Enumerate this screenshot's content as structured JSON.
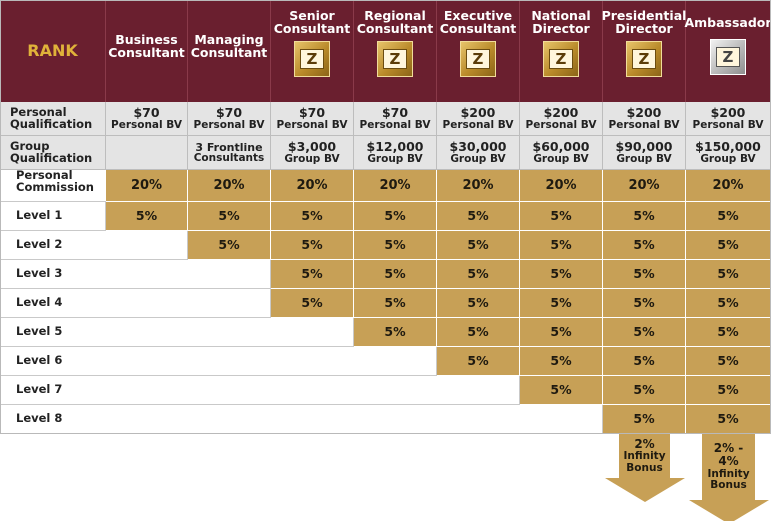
{
  "header": {
    "rank": "RANK",
    "columns": [
      {
        "line1": "Business",
        "line2": "Consultant",
        "badge": false
      },
      {
        "line1": "Managing",
        "line2": "Consultant",
        "badge": false
      },
      {
        "line1": "Senior",
        "line2": "Consultant",
        "badge": true,
        "badge_icon": "z-gold-badge-icon"
      },
      {
        "line1": "Regional",
        "line2": "Consultant",
        "badge": true,
        "badge_icon": "z-gold-badge-icon"
      },
      {
        "line1": "Executive",
        "line2": "Consultant",
        "badge": true,
        "badge_icon": "z-gold-badge-icon"
      },
      {
        "line1": "National",
        "line2": "Director",
        "badge": true,
        "badge_icon": "z-gold-badge-icon"
      },
      {
        "line1": "Presidential",
        "line2": "Director",
        "badge": true,
        "badge_icon": "z-gold-badge-icon"
      },
      {
        "line1": "Ambassador",
        "line2": "",
        "badge": true,
        "badge_icon": "z-silver-badge-icon"
      }
    ]
  },
  "personal_qualification": {
    "label1": "Personal",
    "label2": "Qualification",
    "values": [
      {
        "amount": "$70",
        "unit": "Personal BV"
      },
      {
        "amount": "$70",
        "unit": "Personal BV"
      },
      {
        "amount": "$70",
        "unit": "Personal BV"
      },
      {
        "amount": "$70",
        "unit": "Personal BV"
      },
      {
        "amount": "$200",
        "unit": "Personal BV"
      },
      {
        "amount": "$200",
        "unit": "Personal BV"
      },
      {
        "amount": "$200",
        "unit": "Personal BV"
      },
      {
        "amount": "$200",
        "unit": "Personal BV"
      }
    ]
  },
  "group_qualification": {
    "label1": "Group",
    "label2": "Qualification",
    "values": [
      {
        "amount": "",
        "unit": ""
      },
      {
        "amount": "3 Frontline",
        "unit": "Consultants"
      },
      {
        "amount": "$3,000",
        "unit": "Group BV"
      },
      {
        "amount": "$12,000",
        "unit": "Group BV"
      },
      {
        "amount": "$30,000",
        "unit": "Group BV"
      },
      {
        "amount": "$60,000",
        "unit": "Group BV"
      },
      {
        "amount": "$90,000",
        "unit": "Group BV"
      },
      {
        "amount": "$150,000",
        "unit": "Group BV"
      }
    ]
  },
  "personal_commission": {
    "label1": "Personal",
    "label2": "Commission",
    "values": [
      "20%",
      "20%",
      "20%",
      "20%",
      "20%",
      "20%",
      "20%",
      "20%"
    ]
  },
  "levels": [
    {
      "label": "Level 1",
      "value": "5%",
      "start_col": 0
    },
    {
      "label": "Level 2",
      "value": "5%",
      "start_col": 1
    },
    {
      "label": "Level 3",
      "value": "5%",
      "start_col": 2
    },
    {
      "label": "Level 4",
      "value": "5%",
      "start_col": 2
    },
    {
      "label": "Level 5",
      "value": "5%",
      "start_col": 3
    },
    {
      "label": "Level 6",
      "value": "5%",
      "start_col": 4
    },
    {
      "label": "Level 7",
      "value": "5%",
      "start_col": 5
    },
    {
      "label": "Level 8",
      "value": "5%",
      "start_col": 6
    }
  ],
  "infinity_bonus": [
    {
      "col": 6,
      "line1": "2%",
      "line2": "Infinity",
      "line3": "Bonus"
    },
    {
      "col": 7,
      "line1": "2% - 4%",
      "line2": "Infinity",
      "line3": "Bonus"
    }
  ],
  "colors": {
    "header_bg": "#6a1f2f",
    "rank_text": "#e0b23a",
    "gold_cell": "#c7a056",
    "grey_cell": "#e4e4e4"
  }
}
